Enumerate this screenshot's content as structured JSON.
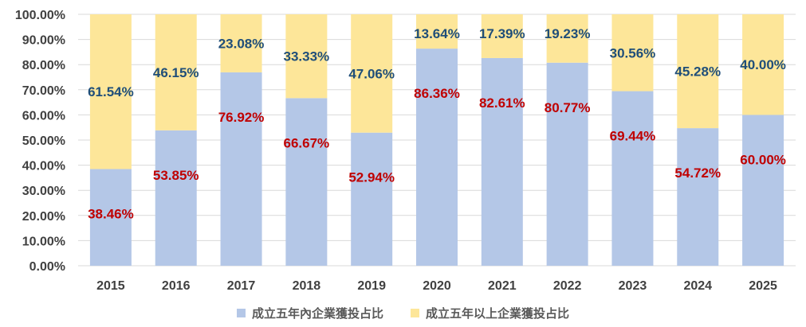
{
  "chart_data": {
    "type": "bar",
    "stacked": true,
    "categories": [
      "2015",
      "2016",
      "2017",
      "2018",
      "2019",
      "2020",
      "2021",
      "2022",
      "2023",
      "2024",
      "2025"
    ],
    "series": [
      {
        "name": "成立五年內企業獲投占比",
        "color": "#b4c7e7",
        "values": [
          38.46,
          53.85,
          76.92,
          66.67,
          52.94,
          86.36,
          82.61,
          80.77,
          69.44,
          54.72,
          60.0
        ],
        "labels": [
          "38.46%",
          "53.85%",
          "76.92%",
          "66.67%",
          "52.94%",
          "86.36%",
          "82.61%",
          "80.77%",
          "69.44%",
          "54.72%",
          "60.00%"
        ],
        "label_color": "#c00000"
      },
      {
        "name": "成立五年以上企業獲投占比",
        "color": "#fde699",
        "values": [
          61.54,
          46.15,
          23.08,
          33.33,
          47.06,
          13.64,
          17.39,
          19.23,
          30.56,
          45.28,
          40.0
        ],
        "labels": [
          "61.54%",
          "46.15%",
          "23.08%",
          "33.33%",
          "47.06%",
          "13.64%",
          "17.39%",
          "19.23%",
          "30.56%",
          "45.28%",
          "40.00%"
        ],
        "label_color": "#1f4e79"
      }
    ],
    "yticks": [
      "0.00%",
      "10.00%",
      "20.00%",
      "30.00%",
      "40.00%",
      "50.00%",
      "60.00%",
      "70.00%",
      "80.00%",
      "90.00%",
      "100.00%"
    ],
    "ylim": [
      0,
      100
    ],
    "grid": true,
    "legend": "bottom"
  }
}
